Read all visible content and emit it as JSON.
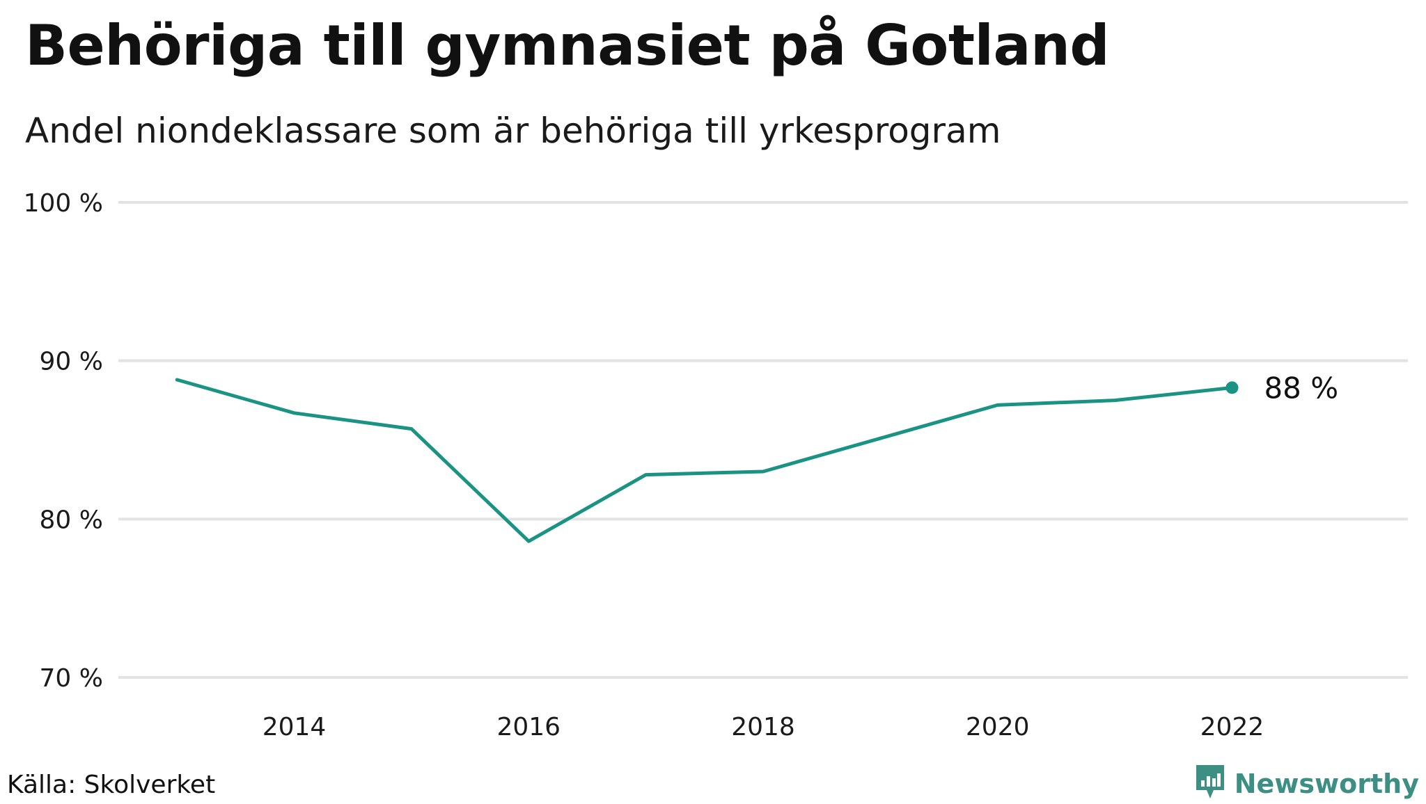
{
  "header": {
    "title": "Behöriga till gymnasiet på Gotland",
    "subtitle": "Andel niondeklassare som är behöriga till yrkesprogram"
  },
  "footer": {
    "source": "Källa: Skolverket",
    "brand": "Newsworthy",
    "brand_icon": "newsworthy-logo-icon",
    "brand_color": "#3d8f84"
  },
  "end_label": "88  %",
  "colors": {
    "line": "#1a9384",
    "grid": "#e3e3e3"
  },
  "chart_data": {
    "type": "line",
    "title": "Behöriga till gymnasiet på Gotland",
    "subtitle": "Andel niondeklassare som är behöriga till yrkesprogram",
    "xlabel": "",
    "ylabel": "",
    "x": [
      2013,
      2014,
      2015,
      2016,
      2017,
      2018,
      2019,
      2020,
      2021,
      2022
    ],
    "series": [
      {
        "values": [
          88.8,
          86.7,
          85.7,
          78.6,
          82.8,
          83.0,
          85.1,
          87.2,
          87.5,
          88.3
        ]
      }
    ],
    "xlim": [
      2012.5,
      2023.5
    ],
    "ylim": [
      70,
      100
    ],
    "x_ticks": [
      2014,
      2016,
      2018,
      2020,
      2022
    ],
    "x_tick_labels": [
      "2014",
      "2016",
      "2018",
      "2020",
      "2022"
    ],
    "y_ticks": [
      70,
      80,
      90,
      100
    ],
    "y_tick_labels": [
      "70 %",
      "80 %",
      "90 %",
      "100 %"
    ],
    "grid": true,
    "legend": "none"
  }
}
